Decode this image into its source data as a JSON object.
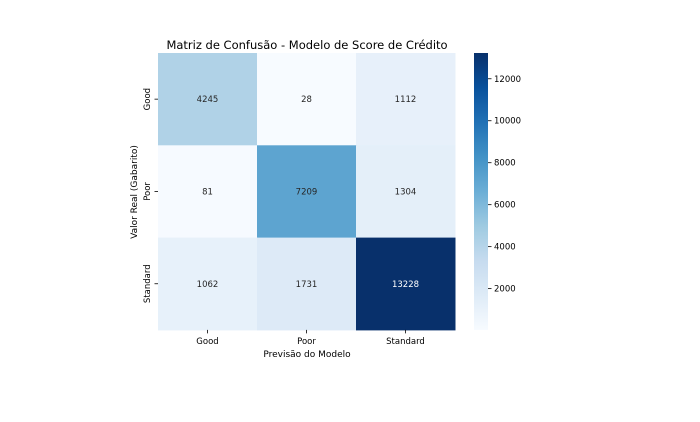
{
  "chart_data": {
    "type": "heatmap",
    "title": "Matriz de Confusão - Modelo de Score de Crédito",
    "xlabel": "Previsão do Modelo",
    "ylabel": "Valor Real (Gabarito)",
    "x_categories": [
      "Good",
      "Poor",
      "Standard"
    ],
    "y_categories": [
      "Good",
      "Poor",
      "Standard"
    ],
    "values": [
      [
        4245,
        28,
        1112
      ],
      [
        81,
        7209,
        1304
      ],
      [
        1062,
        1731,
        13228
      ]
    ],
    "colormap": "Blues",
    "colorbar": {
      "min": 28,
      "max": 13228,
      "ticks": [
        2000,
        4000,
        6000,
        8000,
        10000,
        12000
      ]
    },
    "colors": {
      "low": "#f7fbff",
      "high": "#08306b",
      "text_dark": "#262626",
      "text_light": "#ffffff"
    }
  }
}
